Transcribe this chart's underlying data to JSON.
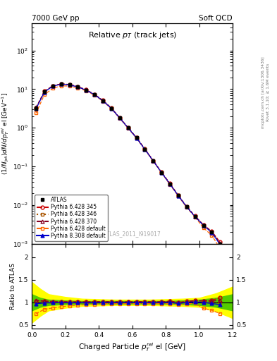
{
  "header_left": "7000 GeV pp",
  "header_right": "Soft QCD",
  "watermark": "ATLAS_2011_I919017",
  "right_label_top": "Rivet 3.1.10; ≥ 1.6M events",
  "right_label_bot": "mcplots.cern.ch [arXiv:1306.3436]",
  "ylim_main": [
    0.001,
    500
  ],
  "ylim_ratio": [
    0.42,
    2.3
  ],
  "xlim": [
    0.0,
    1.2
  ],
  "x_data": [
    0.025,
    0.075,
    0.125,
    0.175,
    0.225,
    0.275,
    0.325,
    0.375,
    0.425,
    0.475,
    0.525,
    0.575,
    0.625,
    0.675,
    0.725,
    0.775,
    0.825,
    0.875,
    0.925,
    0.975,
    1.025,
    1.075,
    1.125
  ],
  "atlas_y": [
    3.2,
    8.5,
    12.0,
    13.5,
    13.0,
    11.5,
    9.5,
    7.2,
    5.0,
    3.2,
    1.8,
    1.0,
    0.55,
    0.28,
    0.14,
    0.07,
    0.035,
    0.018,
    0.009,
    0.005,
    0.003,
    0.002,
    0.001
  ],
  "atlas_yerr": [
    0.3,
    0.5,
    0.6,
    0.7,
    0.65,
    0.58,
    0.48,
    0.36,
    0.25,
    0.16,
    0.09,
    0.05,
    0.028,
    0.014,
    0.007,
    0.0035,
    0.0018,
    0.0009,
    0.00045,
    0.00025,
    0.00015,
    0.0001,
    5e-05
  ],
  "p6_345_y": [
    3.3,
    8.8,
    12.2,
    13.7,
    13.2,
    11.6,
    9.6,
    7.3,
    5.1,
    3.25,
    1.82,
    1.01,
    0.56,
    0.285,
    0.142,
    0.071,
    0.036,
    0.018,
    0.0092,
    0.0052,
    0.0031,
    0.0021,
    0.0011
  ],
  "p6_346_y": [
    3.25,
    8.6,
    12.1,
    13.6,
    13.1,
    11.55,
    9.55,
    7.25,
    5.05,
    3.22,
    1.81,
    1.005,
    0.555,
    0.282,
    0.141,
    0.0705,
    0.0355,
    0.0178,
    0.0091,
    0.0051,
    0.003,
    0.002,
    0.001
  ],
  "p6_370_y": [
    3.35,
    8.7,
    12.15,
    13.65,
    13.15,
    11.58,
    9.58,
    7.28,
    5.08,
    3.23,
    1.815,
    1.008,
    0.558,
    0.283,
    0.1415,
    0.0708,
    0.0358,
    0.01785,
    0.00915,
    0.00515,
    0.0031,
    0.00205,
    0.00105
  ],
  "p6_def_y": [
    2.4,
    7.2,
    10.5,
    12.2,
    12.0,
    10.8,
    9.0,
    6.9,
    4.85,
    3.1,
    1.75,
    0.97,
    0.535,
    0.272,
    0.136,
    0.068,
    0.034,
    0.017,
    0.0087,
    0.0049,
    0.0026,
    0.00165,
    0.00075
  ],
  "p8_def_y": [
    3.1,
    8.4,
    11.9,
    13.4,
    12.9,
    11.4,
    9.4,
    7.15,
    4.98,
    3.18,
    1.79,
    0.995,
    0.548,
    0.278,
    0.139,
    0.0695,
    0.035,
    0.01755,
    0.009,
    0.00505,
    0.003,
    0.00195,
    0.00095
  ],
  "band_x": [
    0.0,
    0.05,
    0.1,
    0.2,
    0.3,
    0.4,
    0.5,
    0.6,
    0.7,
    0.8,
    0.9,
    1.0,
    1.1,
    1.2
  ],
  "band_yel_hi": [
    1.45,
    1.3,
    1.18,
    1.12,
    1.08,
    1.07,
    1.06,
    1.06,
    1.06,
    1.07,
    1.08,
    1.1,
    1.2,
    1.35
  ],
  "band_grn_hi": [
    1.18,
    1.1,
    1.06,
    1.04,
    1.03,
    1.03,
    1.03,
    1.03,
    1.03,
    1.03,
    1.04,
    1.06,
    1.1,
    1.18
  ],
  "color_atlas": "#000000",
  "color_p6_345": "#cc0000",
  "color_p6_346": "#aa5500",
  "color_p6_370": "#880022",
  "color_p6_def": "#ff6600",
  "color_p8_def": "#0000cc",
  "color_band_yellow": "#ffff00",
  "color_band_green": "#55cc00"
}
